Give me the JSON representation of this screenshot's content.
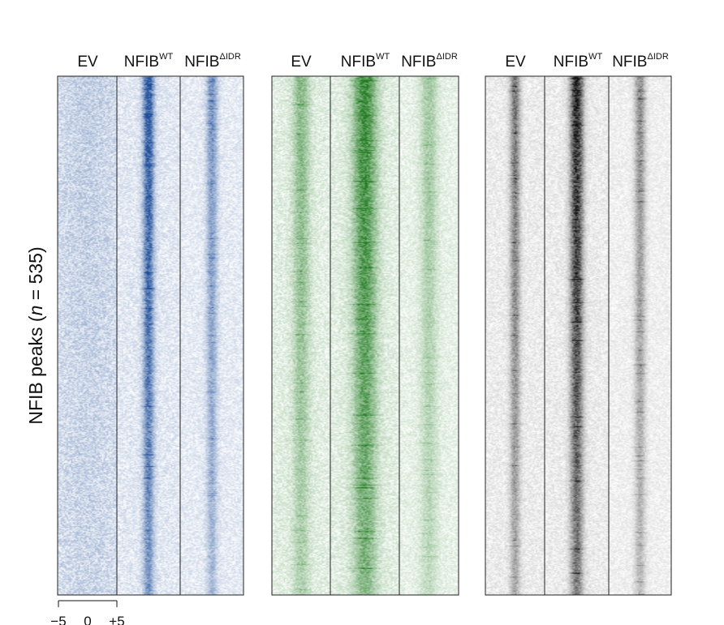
{
  "chart_data": {
    "type": "heatmap",
    "y_label": {
      "prefix": "NFIB peaks (",
      "n_symbol": "n",
      "suffix": " = 535)"
    },
    "n_peaks": 535,
    "x_scale": {
      "ticks": [
        "−5",
        "0",
        "+5"
      ]
    },
    "panels": [
      {
        "name": "blue",
        "color": "#1f4e9a",
        "columns": [
          {
            "base": "EV",
            "sup": ""
          },
          {
            "base": "NFIB",
            "sup": "WT"
          },
          {
            "base": "NFIB",
            "sup": "ΔIDR"
          }
        ]
      },
      {
        "name": "green",
        "color": "#1e7a1e",
        "columns": [
          {
            "base": "EV",
            "sup": ""
          },
          {
            "base": "NFIB",
            "sup": "WT"
          },
          {
            "base": "NFIB",
            "sup": "ΔIDR"
          }
        ]
      },
      {
        "name": "black",
        "color": "#111111",
        "columns": [
          {
            "base": "EV",
            "sup": ""
          },
          {
            "base": "NFIB",
            "sup": "WT"
          },
          {
            "base": "NFIB",
            "sup": "ΔIDR"
          }
        ]
      }
    ]
  }
}
